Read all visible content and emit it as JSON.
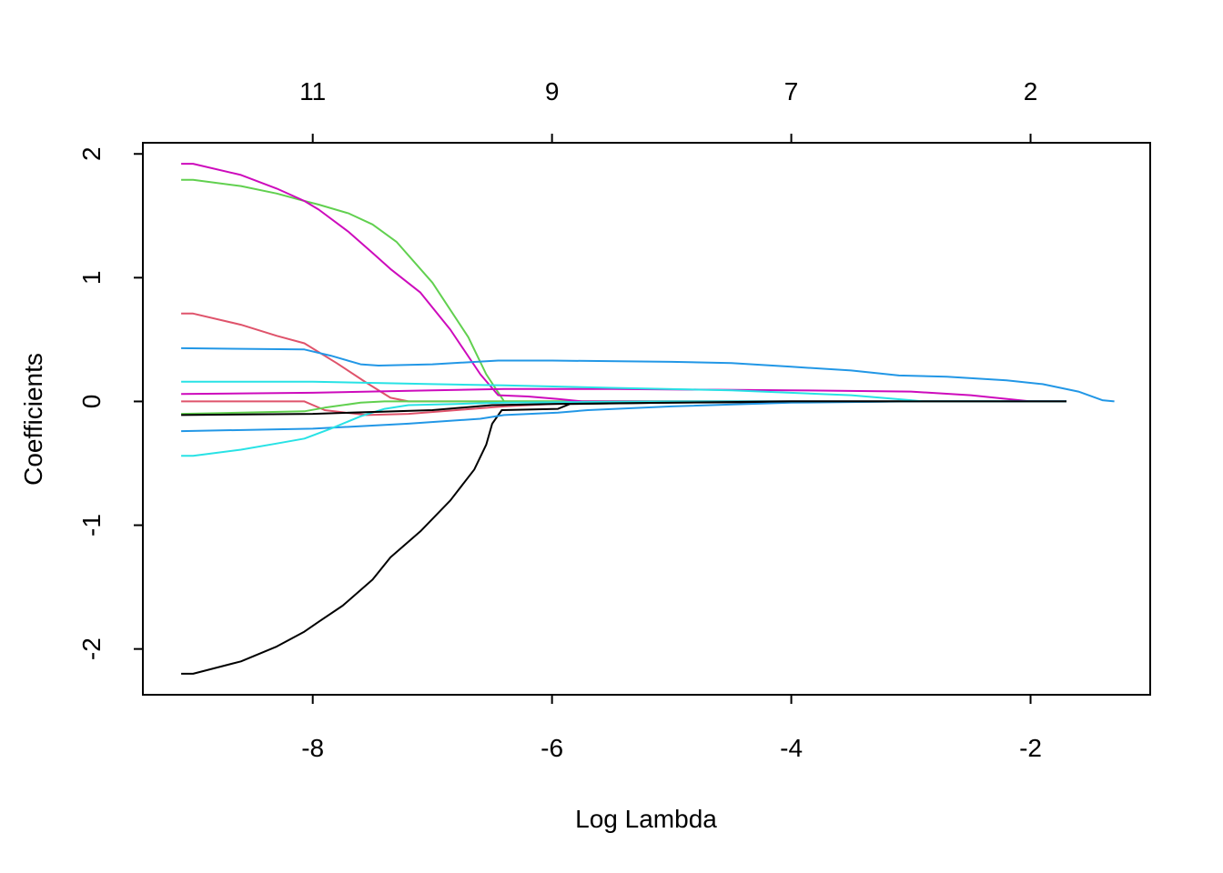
{
  "chart_data": {
    "type": "line",
    "title": "",
    "xlabel": "Log Lambda",
    "ylabel": "Coefficients",
    "xlim": [
      -9.42,
      -1.0
    ],
    "ylim": [
      -2.37,
      2.09
    ],
    "x_ticks": [
      -8,
      -6,
      -4,
      -2
    ],
    "y_ticks": [
      -2,
      -1,
      0,
      1,
      2
    ],
    "x_tick_labels": [
      "-8",
      "-6",
      "-4",
      "-2"
    ],
    "y_tick_labels": [
      "-2",
      "-1",
      "0",
      "1",
      "2"
    ],
    "top_axis_ticks": [
      -8,
      -6,
      -4,
      -2
    ],
    "top_axis_labels": [
      "11",
      "9",
      "7",
      "2"
    ],
    "grid": false,
    "legend": "none",
    "series": [
      {
        "color": "#000000",
        "points": [
          [
            -9.1,
            -2.2
          ],
          [
            -9.0,
            -2.2
          ],
          [
            -8.6,
            -2.1
          ],
          [
            -8.3,
            -1.98
          ],
          [
            -8.07,
            -1.86
          ],
          [
            -7.95,
            -1.78
          ],
          [
            -7.75,
            -1.65
          ],
          [
            -7.5,
            -1.44
          ],
          [
            -7.35,
            -1.26
          ],
          [
            -7.1,
            -1.05
          ],
          [
            -6.85,
            -0.8
          ],
          [
            -6.65,
            -0.55
          ],
          [
            -6.55,
            -0.35
          ],
          [
            -6.5,
            -0.18
          ],
          [
            -6.42,
            -0.07
          ],
          [
            -5.95,
            -0.06
          ],
          [
            -5.85,
            -0.02
          ],
          [
            -5.0,
            -0.01
          ],
          [
            -3.0,
            0.0
          ],
          [
            -1.7,
            0.0
          ]
        ]
      },
      {
        "color": "#df536b",
        "points": [
          [
            -9.1,
            0.71
          ],
          [
            -9.0,
            0.71
          ],
          [
            -8.6,
            0.62
          ],
          [
            -8.3,
            0.53
          ],
          [
            -8.07,
            0.47
          ],
          [
            -7.8,
            0.31
          ],
          [
            -7.55,
            0.15
          ],
          [
            -7.35,
            0.03
          ],
          [
            -7.2,
            0.0
          ],
          [
            -3.0,
            0.0
          ],
          [
            -1.7,
            0.0
          ]
        ]
      },
      {
        "color": "#df536b",
        "points": [
          [
            -9.1,
            0.0
          ],
          [
            -8.07,
            0.0
          ],
          [
            -7.9,
            -0.07
          ],
          [
            -7.55,
            -0.11
          ],
          [
            -7.2,
            -0.1
          ],
          [
            -6.8,
            -0.07
          ],
          [
            -6.4,
            -0.04
          ],
          [
            -6.0,
            -0.02
          ],
          [
            -5.5,
            0.0
          ],
          [
            -1.7,
            0.0
          ]
        ]
      },
      {
        "color": "#61d04f",
        "points": [
          [
            -9.1,
            1.79
          ],
          [
            -9.0,
            1.79
          ],
          [
            -8.6,
            1.74
          ],
          [
            -8.3,
            1.68
          ],
          [
            -8.07,
            1.62
          ],
          [
            -7.95,
            1.59
          ],
          [
            -7.7,
            1.52
          ],
          [
            -7.5,
            1.43
          ],
          [
            -7.3,
            1.29
          ],
          [
            -7.0,
            0.96
          ],
          [
            -6.7,
            0.52
          ],
          [
            -6.55,
            0.22
          ],
          [
            -6.4,
            0.0
          ],
          [
            -3.0,
            0.0
          ],
          [
            -1.7,
            0.0
          ]
        ]
      },
      {
        "color": "#61d04f",
        "points": [
          [
            -9.1,
            -0.1
          ],
          [
            -8.07,
            -0.08
          ],
          [
            -7.9,
            -0.05
          ],
          [
            -7.6,
            -0.01
          ],
          [
            -7.4,
            0.0
          ],
          [
            -5.0,
            0.0
          ],
          [
            -1.7,
            0.0
          ]
        ]
      },
      {
        "color": "#cd0bbc",
        "points": [
          [
            -9.1,
            1.92
          ],
          [
            -9.0,
            1.92
          ],
          [
            -8.6,
            1.83
          ],
          [
            -8.3,
            1.72
          ],
          [
            -8.07,
            1.62
          ],
          [
            -7.95,
            1.55
          ],
          [
            -7.7,
            1.37
          ],
          [
            -7.5,
            1.2
          ],
          [
            -7.35,
            1.07
          ],
          [
            -7.1,
            0.88
          ],
          [
            -6.85,
            0.58
          ],
          [
            -6.6,
            0.22
          ],
          [
            -6.45,
            0.05
          ],
          [
            -6.2,
            0.04
          ],
          [
            -5.95,
            0.02
          ],
          [
            -5.75,
            0.0
          ],
          [
            -3.0,
            0.0
          ],
          [
            -1.7,
            0.0
          ]
        ]
      },
      {
        "color": "#cd0bbc",
        "points": [
          [
            -9.1,
            0.06
          ],
          [
            -8.0,
            0.07
          ],
          [
            -7.0,
            0.09
          ],
          [
            -6.4,
            0.1
          ],
          [
            -5.5,
            0.1
          ],
          [
            -4.0,
            0.09
          ],
          [
            -3.0,
            0.08
          ],
          [
            -2.5,
            0.05
          ],
          [
            -2.0,
            0.0
          ],
          [
            -1.7,
            0.0
          ]
        ]
      },
      {
        "color": "#2297e6",
        "points": [
          [
            -9.1,
            0.43
          ],
          [
            -8.07,
            0.42
          ],
          [
            -7.85,
            0.37
          ],
          [
            -7.6,
            0.3
          ],
          [
            -7.45,
            0.29
          ],
          [
            -7.0,
            0.3
          ],
          [
            -6.45,
            0.33
          ],
          [
            -6.0,
            0.33
          ],
          [
            -5.0,
            0.32
          ],
          [
            -4.5,
            0.31
          ],
          [
            -4.0,
            0.28
          ],
          [
            -3.5,
            0.25
          ],
          [
            -3.1,
            0.21
          ],
          [
            -2.7,
            0.2
          ],
          [
            -2.2,
            0.17
          ],
          [
            -1.9,
            0.14
          ],
          [
            -1.6,
            0.08
          ],
          [
            -1.4,
            0.01
          ],
          [
            -1.3,
            0.0
          ]
        ]
      },
      {
        "color": "#2297e6",
        "points": [
          [
            -9.1,
            -0.24
          ],
          [
            -8.0,
            -0.22
          ],
          [
            -7.2,
            -0.18
          ],
          [
            -6.6,
            -0.14
          ],
          [
            -6.4,
            -0.11
          ],
          [
            -5.95,
            -0.09
          ],
          [
            -5.7,
            -0.07
          ],
          [
            -5.0,
            -0.04
          ],
          [
            -4.0,
            -0.01
          ],
          [
            -3.0,
            0.0
          ],
          [
            -1.7,
            0.0
          ]
        ]
      },
      {
        "color": "#28e2e5",
        "points": [
          [
            -9.1,
            -0.44
          ],
          [
            -9.0,
            -0.44
          ],
          [
            -8.6,
            -0.39
          ],
          [
            -8.3,
            -0.34
          ],
          [
            -8.07,
            -0.3
          ],
          [
            -7.85,
            -0.22
          ],
          [
            -7.6,
            -0.12
          ],
          [
            -7.4,
            -0.06
          ],
          [
            -7.2,
            -0.03
          ],
          [
            -6.8,
            -0.02
          ],
          [
            -6.4,
            -0.01
          ],
          [
            -5.0,
            0.0
          ],
          [
            -1.7,
            0.0
          ]
        ]
      },
      {
        "color": "#28e2e5",
        "points": [
          [
            -9.1,
            0.16
          ],
          [
            -8.0,
            0.16
          ],
          [
            -7.0,
            0.14
          ],
          [
            -6.4,
            0.13
          ],
          [
            -5.5,
            0.11
          ],
          [
            -4.5,
            0.09
          ],
          [
            -3.5,
            0.05
          ],
          [
            -3.0,
            0.01
          ],
          [
            -2.9,
            0.0
          ],
          [
            -1.7,
            0.0
          ]
        ]
      },
      {
        "color": "#000000",
        "points": [
          [
            -9.1,
            -0.11
          ],
          [
            -8.0,
            -0.1
          ],
          [
            -7.0,
            -0.07
          ],
          [
            -6.5,
            -0.03
          ],
          [
            -6.0,
            -0.02
          ],
          [
            -5.0,
            -0.01
          ],
          [
            -4.0,
            0.0
          ],
          [
            -1.7,
            0.0
          ]
        ]
      }
    ]
  }
}
